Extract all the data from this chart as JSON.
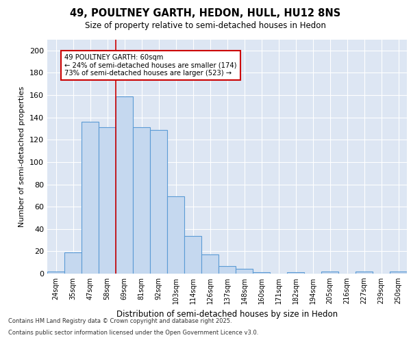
{
  "title_line1": "49, POULTNEY GARTH, HEDON, HULL, HU12 8NS",
  "title_line2": "Size of property relative to semi-detached houses in Hedon",
  "xlabel": "Distribution of semi-detached houses by size in Hedon",
  "ylabel": "Number of semi-detached properties",
  "categories": [
    "24sqm",
    "35sqm",
    "47sqm",
    "58sqm",
    "69sqm",
    "81sqm",
    "92sqm",
    "103sqm",
    "114sqm",
    "126sqm",
    "137sqm",
    "148sqm",
    "160sqm",
    "171sqm",
    "182sqm",
    "194sqm",
    "205sqm",
    "216sqm",
    "227sqm",
    "239sqm",
    "250sqm"
  ],
  "values": [
    2,
    19,
    136,
    131,
    159,
    131,
    129,
    69,
    34,
    17,
    7,
    4,
    1,
    0,
    1,
    0,
    2,
    0,
    2,
    0,
    2
  ],
  "bar_color": "#c5d8ef",
  "bar_edge_color": "#5b9bd5",
  "background_color": "#dde6f3",
  "grid_color": "#ffffff",
  "red_line_index": 3.5,
  "annotation_title": "49 POULTNEY GARTH: 60sqm",
  "annotation_line2": "← 24% of semi-detached houses are smaller (174)",
  "annotation_line3": "73% of semi-detached houses are larger (523) →",
  "annotation_box_color": "#ffffff",
  "annotation_border_color": "#cc0000",
  "footer_line1": "Contains HM Land Registry data © Crown copyright and database right 2025.",
  "footer_line2": "Contains public sector information licensed under the Open Government Licence v3.0.",
  "ylim": [
    0,
    210
  ],
  "yticks": [
    0,
    20,
    40,
    60,
    80,
    100,
    120,
    140,
    160,
    180,
    200
  ]
}
